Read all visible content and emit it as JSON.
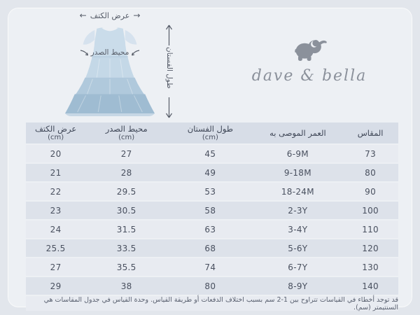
{
  "brand": {
    "name": "dave & bella"
  },
  "icons": {
    "arrow_left": "←",
    "arrow_right": "→"
  },
  "diagram": {
    "shoulder_width_label": "عرض الكتف",
    "chest_circumference_label": "محيط الصدر",
    "dress_length_label": "طول الفستان"
  },
  "table": {
    "headers": [
      {
        "label": "المقاس",
        "unit": ""
      },
      {
        "label": "العمر الموصى به",
        "unit": ""
      },
      {
        "label": "طول الفستان",
        "unit": "(cm)"
      },
      {
        "label": "محيط الصدر",
        "unit": "(cm)"
      },
      {
        "label": "عرض الكتف",
        "unit": "(cm)"
      }
    ],
    "rows": [
      [
        "73",
        "6-9M",
        "45",
        "27",
        "20"
      ],
      [
        "80",
        "9-18M",
        "49",
        "28",
        "21"
      ],
      [
        "90",
        "18-24M",
        "53",
        "29.5",
        "22"
      ],
      [
        "100",
        "2-3Y",
        "58",
        "30.5",
        "23"
      ],
      [
        "110",
        "3-4Y",
        "63",
        "31.5",
        "24"
      ],
      [
        "120",
        "5-6Y",
        "68",
        "33.5",
        "25.5"
      ],
      [
        "130",
        "6-7Y",
        "74",
        "35.5",
        "27"
      ],
      [
        "140",
        "8-9Y",
        "80",
        "38",
        "29"
      ]
    ],
    "note": "قد توجد أخطاء في القياسات تتراوح بين 1-2 سم بسبب اختلاف الدفعات أو طريقة القياس. وحدة القياس في جدول المقاسات هي السنتيمتر (سم)."
  },
  "colors": {
    "page_background": "#e2e6ec",
    "card_background": "#edf0f4",
    "header_row": "#d7dde7",
    "row_light": "#e8ebf1",
    "row_dark": "#dde2ea",
    "text": "#3f4757",
    "brand_gray": "#8b919b",
    "dress_blue": "#b3c9dc"
  }
}
